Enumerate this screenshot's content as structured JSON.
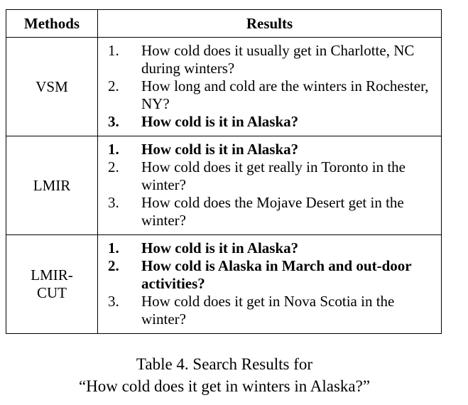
{
  "table": {
    "headers": {
      "methods": "Methods",
      "results": "Results"
    },
    "rows": [
      {
        "method": "VSM",
        "results": [
          {
            "num": "1.",
            "text": "How cold does it usually get in Charlotte, NC during winters?",
            "bold": false
          },
          {
            "num": "2.",
            "text": "How long and cold are the winters in Rochester, NY?",
            "bold": false
          },
          {
            "num": "3.",
            "text": "How cold is it in Alaska?",
            "bold": true
          }
        ]
      },
      {
        "method": "LMIR",
        "results": [
          {
            "num": "1.",
            "text": "How cold is it in Alaska?",
            "bold": true
          },
          {
            "num": "2.",
            "text": "How cold does it get really in Toronto in the winter?",
            "bold": false
          },
          {
            "num": "3.",
            "text": "How cold does the Mojave Desert get in the winter?",
            "bold": false
          }
        ]
      },
      {
        "method": "LMIR-\nCUT",
        "results": [
          {
            "num": "1.",
            "text": "How cold is it in Alaska?",
            "bold": true
          },
          {
            "num": "2.",
            "text": "How cold is Alaska in March and out-door activities?",
            "bold": true
          },
          {
            "num": "3.",
            "text": "How cold does it get in Nova Scotia in the winter?",
            "bold": false
          }
        ]
      }
    ]
  },
  "caption": {
    "line1": "Table 4. Search Results for",
    "line2": "“How cold does it get in winters in Alaska?”"
  }
}
